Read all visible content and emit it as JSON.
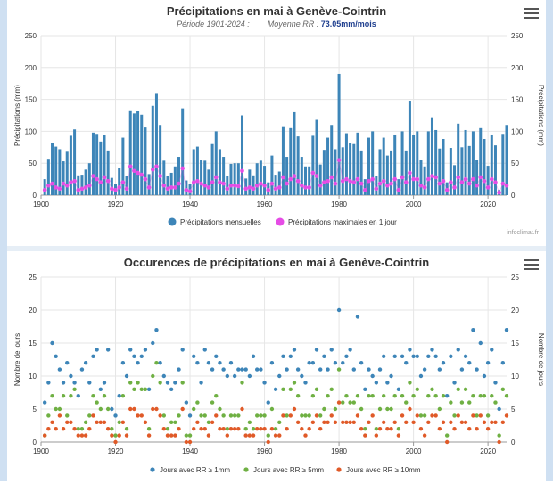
{
  "chart1": {
    "title": "Précipitations en mai à Genève-Cointrin",
    "subtitle_left": "Période 1901-2024 :",
    "subtitle_mid": "Moyenne RR :",
    "subtitle_value": "73.05mm/mois",
    "credit": "infoclimat.fr",
    "chart_data": {
      "type": "bar",
      "ylabel_left": "Précipitations (mm)",
      "ylabel_right": "Précipitations (mm)",
      "ylim": [
        0,
        250
      ],
      "yticks": [
        "0",
        "50",
        "100",
        "150",
        "200",
        "250"
      ],
      "xlim": [
        1900,
        2025
      ],
      "xticks": [
        "1900",
        "1920",
        "1940",
        "1960",
        "1980",
        "2000",
        "2020"
      ],
      "series": [
        {
          "name": "Précipitations mensuelles",
          "color": "#3d85b8"
        },
        {
          "name": "Précipitations maximales en 1 jour",
          "color": "#e54ce5"
        }
      ],
      "start_year": 1901,
      "monthly": [
        25,
        57,
        81,
        76,
        72,
        53,
        68,
        93,
        103,
        31,
        32,
        40,
        50,
        98,
        96,
        84,
        94,
        70,
        27,
        18,
        43,
        90,
        30,
        133,
        128,
        132,
        126,
        106,
        33,
        140,
        160,
        110,
        54,
        30,
        35,
        45,
        60,
        136,
        23,
        17,
        72,
        76,
        55,
        54,
        40,
        80,
        100,
        72,
        60,
        30,
        49,
        50,
        50,
        125,
        26,
        40,
        31,
        50,
        54,
        46,
        20,
        62,
        32,
        37,
        108,
        60,
        105,
        130,
        92,
        60,
        45,
        45,
        93,
        118,
        48,
        71,
        90,
        110,
        72,
        190,
        75,
        97,
        82,
        80,
        98,
        70,
        25,
        90,
        100,
        30,
        72,
        90,
        62,
        70,
        95,
        25,
        100,
        70,
        148,
        95,
        100,
        55,
        45,
        100,
        122,
        102,
        73,
        88,
        20,
        74,
        47,
        112,
        75,
        102,
        77,
        100,
        55,
        105,
        88,
        46,
        95,
        78,
        8,
        96,
        110
      ],
      "maxday": [
        8,
        15,
        18,
        12,
        10,
        18,
        15,
        20,
        22,
        8,
        10,
        12,
        15,
        30,
        25,
        20,
        28,
        22,
        10,
        8,
        12,
        20,
        10,
        45,
        38,
        35,
        32,
        25,
        12,
        40,
        45,
        30,
        15,
        10,
        12,
        12,
        18,
        42,
        8,
        6,
        20,
        22,
        18,
        15,
        12,
        20,
        28,
        20,
        18,
        10,
        15,
        15,
        14,
        38,
        10,
        12,
        10,
        15,
        18,
        15,
        8,
        18,
        10,
        12,
        28,
        18,
        25,
        30,
        22,
        15,
        12,
        12,
        35,
        30,
        15,
        20,
        22,
        28,
        18,
        55,
        22,
        25,
        22,
        20,
        25,
        18,
        8,
        22,
        25,
        10,
        18,
        22,
        15,
        18,
        25,
        8,
        28,
        20,
        35,
        25,
        25,
        15,
        12,
        25,
        30,
        28,
        18,
        22,
        8,
        20,
        12,
        28,
        20,
        25,
        18,
        25,
        15,
        28,
        22,
        12,
        25,
        20,
        4,
        18,
        15
      ]
    },
    "legend": {
      "item1": "Précipitations mensuelles",
      "item2": "Précipitations maximales en 1 jour"
    }
  },
  "chart2": {
    "title": "Occurences de précipitations en mai à Genève-Cointrin",
    "chart_data": {
      "type": "scatter",
      "ylabel_left": "Nombre de jours",
      "ylabel_right": "Nombre de jours",
      "ylim": [
        0,
        25
      ],
      "yticks": [
        "0",
        "5",
        "10",
        "15",
        "20",
        "25"
      ],
      "xlim": [
        1900,
        2025
      ],
      "xticks": [
        "1900",
        "1920",
        "1940",
        "1960",
        "1980",
        "2000",
        "2020"
      ],
      "start_year": 1901,
      "series": [
        {
          "name": "Jours avec RR ≥ 1mm",
          "color": "#3d85b8",
          "values": [
            6,
            9,
            15,
            13,
            11,
            9,
            12,
            10,
            9,
            7,
            11,
            12,
            9,
            13,
            14,
            8,
            9,
            14,
            5,
            4,
            7,
            12,
            10,
            14,
            13,
            12,
            13,
            14,
            8,
            15,
            17,
            12,
            10,
            9,
            8,
            9,
            11,
            14,
            6,
            4,
            13,
            12,
            9,
            14,
            12,
            11,
            13,
            12,
            11,
            10,
            12,
            10,
            11,
            11,
            11,
            10,
            13,
            11,
            11,
            9,
            6,
            12,
            8,
            10,
            13,
            11,
            13,
            14,
            11,
            10,
            9,
            12,
            12,
            14,
            11,
            13,
            11,
            14,
            12,
            20,
            12,
            13,
            14,
            11,
            19,
            12,
            8,
            11,
            10,
            9,
            11,
            13,
            9,
            10,
            13,
            8,
            13,
            12,
            14,
            13,
            13,
            10,
            11,
            13,
            14,
            13,
            11,
            12,
            7,
            13,
            9,
            14,
            11,
            13,
            12,
            17,
            11,
            15,
            10,
            12,
            14,
            9,
            5,
            12,
            17
          ]
        },
        {
          "name": "Jours avec RR ≥ 5mm",
          "color": "#6fb043",
          "values": [
            1,
            4,
            7,
            5,
            5,
            7,
            4,
            7,
            8,
            2,
            2,
            3,
            4,
            7,
            6,
            5,
            7,
            5,
            2,
            1,
            3,
            7,
            2,
            9,
            8,
            9,
            8,
            8,
            2,
            10,
            12,
            9,
            4,
            2,
            3,
            3,
            4,
            9,
            1,
            1,
            5,
            6,
            4,
            4,
            3,
            6,
            7,
            5,
            4,
            2,
            4,
            4,
            4,
            9,
            2,
            3,
            2,
            4,
            4,
            4,
            1,
            5,
            2,
            3,
            8,
            4,
            8,
            9,
            7,
            4,
            4,
            4,
            7,
            8,
            4,
            5,
            7,
            8,
            5,
            11,
            6,
            7,
            6,
            6,
            7,
            5,
            2,
            7,
            7,
            2,
            5,
            7,
            5,
            5,
            7,
            2,
            7,
            6,
            9,
            7,
            8,
            4,
            4,
            7,
            8,
            7,
            5,
            7,
            1,
            6,
            4,
            8,
            6,
            8,
            6,
            7,
            4,
            7,
            7,
            4,
            7,
            6,
            1,
            8,
            7
          ]
        },
        {
          "name": "Jours avec RR ≥ 10mm",
          "color": "#e05a28",
          "values": [
            1,
            2,
            3,
            2,
            4,
            2,
            3,
            3,
            2,
            1,
            1,
            1,
            2,
            4,
            3,
            3,
            3,
            2,
            1,
            0,
            1,
            3,
            1,
            5,
            5,
            4,
            4,
            3,
            1,
            5,
            5,
            4,
            2,
            1,
            1,
            1,
            2,
            5,
            0,
            0,
            2,
            3,
            2,
            2,
            1,
            3,
            4,
            2,
            2,
            1,
            2,
            2,
            2,
            5,
            1,
            1,
            1,
            2,
            2,
            2,
            0,
            2,
            1,
            1,
            4,
            2,
            4,
            5,
            3,
            2,
            1,
            2,
            3,
            4,
            2,
            3,
            3,
            4,
            3,
            6,
            3,
            3,
            3,
            3,
            4,
            2,
            1,
            3,
            4,
            1,
            2,
            3,
            2,
            2,
            3,
            1,
            4,
            3,
            5,
            3,
            4,
            2,
            1,
            3,
            4,
            4,
            2,
            3,
            0,
            3,
            2,
            4,
            3,
            3,
            2,
            4,
            2,
            4,
            3,
            2,
            3,
            3,
            0,
            3,
            4
          ]
        }
      ]
    },
    "legend": {
      "item1": "Jours avec RR ≥ 1mm",
      "item2": "Jours avec RR ≥ 5mm",
      "item3": "Jours avec RR ≥ 10mm"
    }
  }
}
